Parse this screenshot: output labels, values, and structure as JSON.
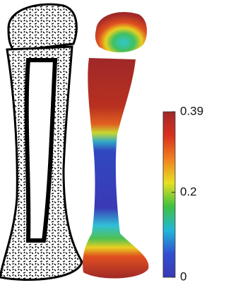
{
  "colorbar": {
    "min": 0,
    "max": 0.39,
    "ticks": [
      0,
      0.2,
      0.39
    ],
    "colors": [
      "#3a3ab5",
      "#3050d0",
      "#20b8d8",
      "#40c040",
      "#e8e020",
      "#f08020",
      "#d83020",
      "#a02828"
    ]
  }
}
